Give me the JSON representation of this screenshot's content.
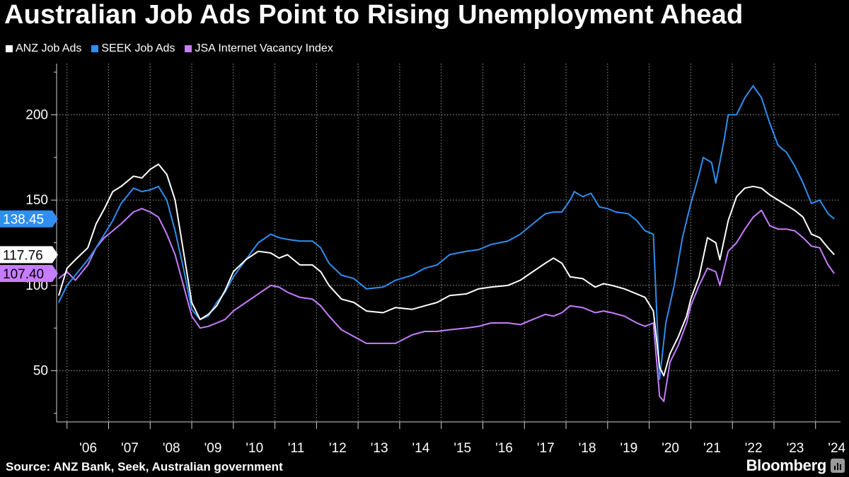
{
  "title": "Australian Job Ads Point to Rising Unemployment Ahead",
  "source": "Source: ANZ Bank, Seek, Australian government",
  "brand": "Bloomberg",
  "chart_data": {
    "type": "line",
    "title": "Australian Job Ads Point to Rising Unemployment Ahead",
    "xlabel": "",
    "ylabel": "",
    "ylim": [
      20,
      230
    ],
    "y_ticks": [
      50,
      100,
      150,
      200
    ],
    "x_ticks": [
      "'06",
      "'07",
      "'08",
      "'09",
      "'10",
      "'11",
      "'12",
      "'13",
      "'14",
      "'15",
      "'16",
      "'17",
      "'18",
      "'19",
      "'20",
      "'21",
      "'22",
      "'23",
      "'24"
    ],
    "grid": true,
    "legend_position": "top-left",
    "series": [
      {
        "name": "ANZ Job Ads",
        "color": "#ffffff",
        "last_label": "117.76",
        "points": [
          [
            2005.8,
            94
          ],
          [
            2006.0,
            110
          ],
          [
            2006.2,
            115
          ],
          [
            2006.5,
            122
          ],
          [
            2006.7,
            136
          ],
          [
            2006.9,
            145
          ],
          [
            2007.1,
            155
          ],
          [
            2007.3,
            158
          ],
          [
            2007.6,
            164
          ],
          [
            2007.8,
            163
          ],
          [
            2008.0,
            168
          ],
          [
            2008.2,
            171
          ],
          [
            2008.4,
            165
          ],
          [
            2008.6,
            150
          ],
          [
            2008.8,
            120
          ],
          [
            2009.0,
            90
          ],
          [
            2009.2,
            80
          ],
          [
            2009.4,
            83
          ],
          [
            2009.6,
            88
          ],
          [
            2009.8,
            97
          ],
          [
            2010.0,
            108
          ],
          [
            2010.3,
            115
          ],
          [
            2010.6,
            120
          ],
          [
            2010.9,
            119
          ],
          [
            2011.1,
            116
          ],
          [
            2011.3,
            118
          ],
          [
            2011.6,
            112
          ],
          [
            2011.9,
            112
          ],
          [
            2012.1,
            108
          ],
          [
            2012.3,
            100
          ],
          [
            2012.6,
            92
          ],
          [
            2012.9,
            90
          ],
          [
            2013.2,
            85
          ],
          [
            2013.6,
            84
          ],
          [
            2013.9,
            87
          ],
          [
            2014.3,
            86
          ],
          [
            2014.6,
            88
          ],
          [
            2014.9,
            90
          ],
          [
            2015.2,
            94
          ],
          [
            2015.6,
            95
          ],
          [
            2015.9,
            98
          ],
          [
            2016.2,
            99
          ],
          [
            2016.6,
            100
          ],
          [
            2016.9,
            103
          ],
          [
            2017.2,
            108
          ],
          [
            2017.5,
            113
          ],
          [
            2017.7,
            116
          ],
          [
            2017.9,
            113
          ],
          [
            2018.1,
            105
          ],
          [
            2018.4,
            104
          ],
          [
            2018.7,
            99
          ],
          [
            2018.9,
            101
          ],
          [
            2019.1,
            100
          ],
          [
            2019.4,
            98
          ],
          [
            2019.7,
            95
          ],
          [
            2019.9,
            93
          ],
          [
            2020.1,
            85
          ],
          [
            2020.25,
            52
          ],
          [
            2020.35,
            47
          ],
          [
            2020.5,
            60
          ],
          [
            2020.7,
            70
          ],
          [
            2020.9,
            82
          ],
          [
            2021.0,
            92
          ],
          [
            2021.2,
            105
          ],
          [
            2021.4,
            128
          ],
          [
            2021.6,
            125
          ],
          [
            2021.7,
            115
          ],
          [
            2021.9,
            138
          ],
          [
            2022.1,
            152
          ],
          [
            2022.3,
            157
          ],
          [
            2022.5,
            158
          ],
          [
            2022.7,
            157
          ],
          [
            2022.9,
            153
          ],
          [
            2023.1,
            150
          ],
          [
            2023.3,
            147
          ],
          [
            2023.5,
            144
          ],
          [
            2023.7,
            140
          ],
          [
            2023.9,
            130
          ],
          [
            2024.1,
            128
          ],
          [
            2024.3,
            122
          ],
          [
            2024.45,
            118
          ]
        ]
      },
      {
        "name": "SEEK Job Ads",
        "color": "#2f8ef0",
        "last_label": "138.45",
        "points": [
          [
            2005.8,
            90
          ],
          [
            2006.0,
            100
          ],
          [
            2006.2,
            106
          ],
          [
            2006.5,
            115
          ],
          [
            2006.7,
            122
          ],
          [
            2006.9,
            130
          ],
          [
            2007.1,
            138
          ],
          [
            2007.3,
            148
          ],
          [
            2007.6,
            157
          ],
          [
            2007.8,
            155
          ],
          [
            2008.0,
            156
          ],
          [
            2008.2,
            158
          ],
          [
            2008.4,
            150
          ],
          [
            2008.6,
            132
          ],
          [
            2008.8,
            110
          ],
          [
            2009.0,
            86
          ],
          [
            2009.2,
            80
          ],
          [
            2009.4,
            82
          ],
          [
            2009.6,
            90
          ],
          [
            2009.8,
            96
          ],
          [
            2010.0,
            105
          ],
          [
            2010.3,
            115
          ],
          [
            2010.6,
            125
          ],
          [
            2010.9,
            130
          ],
          [
            2011.1,
            128
          ],
          [
            2011.3,
            127
          ],
          [
            2011.6,
            126
          ],
          [
            2011.9,
            126
          ],
          [
            2012.1,
            122
          ],
          [
            2012.3,
            113
          ],
          [
            2012.6,
            106
          ],
          [
            2012.9,
            104
          ],
          [
            2013.2,
            98
          ],
          [
            2013.6,
            99
          ],
          [
            2013.9,
            103
          ],
          [
            2014.3,
            106
          ],
          [
            2014.6,
            110
          ],
          [
            2014.9,
            112
          ],
          [
            2015.2,
            118
          ],
          [
            2015.6,
            120
          ],
          [
            2015.9,
            121
          ],
          [
            2016.2,
            124
          ],
          [
            2016.6,
            126
          ],
          [
            2016.9,
            130
          ],
          [
            2017.2,
            136
          ],
          [
            2017.5,
            142
          ],
          [
            2017.7,
            143
          ],
          [
            2017.9,
            143
          ],
          [
            2018.1,
            150
          ],
          [
            2018.2,
            155
          ],
          [
            2018.4,
            152
          ],
          [
            2018.6,
            154
          ],
          [
            2018.8,
            146
          ],
          [
            2019.0,
            145
          ],
          [
            2019.2,
            143
          ],
          [
            2019.5,
            142
          ],
          [
            2019.7,
            138
          ],
          [
            2019.9,
            132
          ],
          [
            2020.1,
            130
          ],
          [
            2020.25,
            45
          ],
          [
            2020.4,
            78
          ],
          [
            2020.6,
            100
          ],
          [
            2020.8,
            128
          ],
          [
            2021.0,
            148
          ],
          [
            2021.2,
            165
          ],
          [
            2021.3,
            175
          ],
          [
            2021.5,
            172
          ],
          [
            2021.6,
            160
          ],
          [
            2021.8,
            185
          ],
          [
            2021.9,
            200
          ],
          [
            2022.1,
            200
          ],
          [
            2022.3,
            210
          ],
          [
            2022.5,
            217
          ],
          [
            2022.7,
            210
          ],
          [
            2022.9,
            195
          ],
          [
            2023.1,
            182
          ],
          [
            2023.3,
            178
          ],
          [
            2023.5,
            170
          ],
          [
            2023.7,
            160
          ],
          [
            2023.9,
            148
          ],
          [
            2024.1,
            150
          ],
          [
            2024.3,
            142
          ],
          [
            2024.45,
            139
          ]
        ]
      },
      {
        "name": "JSA Internet Vacancy Index",
        "color": "#c77dff",
        "last_label": "107.40",
        "points": [
          [
            2005.8,
            104
          ],
          [
            2006.0,
            108
          ],
          [
            2006.2,
            103
          ],
          [
            2006.5,
            112
          ],
          [
            2006.7,
            122
          ],
          [
            2006.9,
            128
          ],
          [
            2007.1,
            132
          ],
          [
            2007.3,
            136
          ],
          [
            2007.6,
            143
          ],
          [
            2007.8,
            145
          ],
          [
            2008.0,
            143
          ],
          [
            2008.2,
            140
          ],
          [
            2008.4,
            130
          ],
          [
            2008.6,
            118
          ],
          [
            2008.8,
            100
          ],
          [
            2009.0,
            82
          ],
          [
            2009.2,
            75
          ],
          [
            2009.4,
            76
          ],
          [
            2009.6,
            78
          ],
          [
            2009.8,
            80
          ],
          [
            2010.0,
            85
          ],
          [
            2010.3,
            90
          ],
          [
            2010.6,
            95
          ],
          [
            2010.9,
            100
          ],
          [
            2011.1,
            99
          ],
          [
            2011.3,
            96
          ],
          [
            2011.6,
            93
          ],
          [
            2011.9,
            92
          ],
          [
            2012.1,
            88
          ],
          [
            2012.3,
            82
          ],
          [
            2012.6,
            74
          ],
          [
            2012.9,
            70
          ],
          [
            2013.2,
            66
          ],
          [
            2013.6,
            66
          ],
          [
            2013.9,
            66
          ],
          [
            2014.3,
            71
          ],
          [
            2014.6,
            73
          ],
          [
            2014.9,
            73
          ],
          [
            2015.2,
            74
          ],
          [
            2015.6,
            75
          ],
          [
            2015.9,
            76
          ],
          [
            2016.2,
            78
          ],
          [
            2016.6,
            78
          ],
          [
            2016.9,
            77
          ],
          [
            2017.2,
            80
          ],
          [
            2017.5,
            83
          ],
          [
            2017.7,
            82
          ],
          [
            2017.9,
            84
          ],
          [
            2018.1,
            88
          ],
          [
            2018.4,
            87
          ],
          [
            2018.7,
            84
          ],
          [
            2018.9,
            85
          ],
          [
            2019.1,
            84
          ],
          [
            2019.4,
            82
          ],
          [
            2019.7,
            78
          ],
          [
            2019.9,
            76
          ],
          [
            2020.1,
            78
          ],
          [
            2020.25,
            35
          ],
          [
            2020.35,
            32
          ],
          [
            2020.5,
            55
          ],
          [
            2020.7,
            65
          ],
          [
            2020.9,
            78
          ],
          [
            2021.0,
            88
          ],
          [
            2021.2,
            100
          ],
          [
            2021.4,
            110
          ],
          [
            2021.6,
            108
          ],
          [
            2021.7,
            100
          ],
          [
            2021.9,
            120
          ],
          [
            2022.1,
            125
          ],
          [
            2022.3,
            133
          ],
          [
            2022.5,
            140
          ],
          [
            2022.7,
            144
          ],
          [
            2022.9,
            135
          ],
          [
            2023.1,
            133
          ],
          [
            2023.3,
            133
          ],
          [
            2023.5,
            132
          ],
          [
            2023.7,
            128
          ],
          [
            2023.9,
            123
          ],
          [
            2024.1,
            122
          ],
          [
            2024.3,
            112
          ],
          [
            2024.45,
            107
          ]
        ]
      }
    ]
  }
}
